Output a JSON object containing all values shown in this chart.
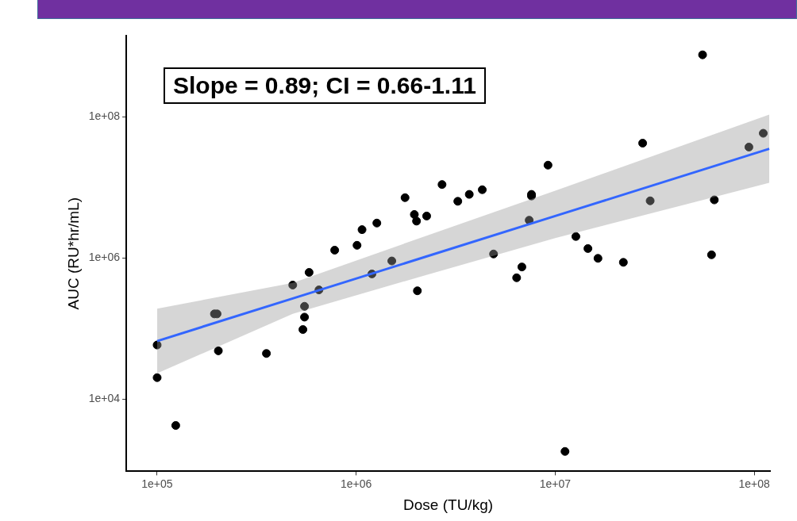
{
  "chart_data": {
    "type": "scatter",
    "xlabel": "Dose (TU/kg)",
    "ylabel": "AUC (RU*hr/mL)",
    "annotations": [
      "Slope = 0.89; CI = 0.66-1.11"
    ],
    "log": "xy",
    "grid": false,
    "legend": false,
    "xlim": [
      70000,
      120000000
    ],
    "ylim": [
      940,
      1400000000
    ],
    "xticks": [
      {
        "value": 100000,
        "label": "1e+05"
      },
      {
        "value": 1000000,
        "label": "1e+06"
      },
      {
        "value": 10000000,
        "label": "1e+07"
      },
      {
        "value": 100000000,
        "label": "1e+08"
      }
    ],
    "yticks": [
      {
        "value": 10000,
        "label": "1e+04"
      },
      {
        "value": 1000000,
        "label": "1e+06"
      },
      {
        "value": 100000000,
        "label": "1e+08"
      }
    ],
    "series": [
      {
        "marker": "circle",
        "color": "#000000",
        "x": [
          100000,
          100000,
          124000,
          194000,
          200000,
          203000,
          354000,
          480000,
          540000,
          550000,
          550000,
          580000,
          650000,
          780000,
          1010000,
          1200000,
          1070000,
          1270000,
          1510000,
          1760000,
          1960000,
          2010000,
          2030000,
          2260000,
          2700000,
          3240000,
          3700000,
          4300000,
          9200000,
          7600000,
          7600000,
          7400000,
          4900000,
          12700000,
          14600000,
          16400000,
          22000000,
          27500000,
          30000000,
          55000000,
          63000000,
          61000000,
          94000000,
          111000000,
          6400000,
          6800000,
          11200000
        ],
        "values": [
          58000,
          20000,
          4200,
          160000,
          160000,
          48000,
          44000,
          410000,
          96000,
          144000,
          205000,
          620000,
          350000,
          1280000,
          1500000,
          590000,
          2500000,
          3100000,
          900000,
          7100000,
          4100000,
          3300000,
          340000,
          3900000,
          10900000,
          6300000,
          7900000,
          9200000,
          20500000,
          7900000,
          7500000,
          3400000,
          1130000,
          2000000,
          1350000,
          980000,
          860000,
          42000000,
          6400000,
          750000000,
          6600000,
          1100000,
          37000000,
          58000000,
          520000,
          740000,
          1800
        ]
      },
      {
        "type": "line",
        "color": "#3366ff",
        "x": [
          100000,
          480000,
          2200000,
          10000000,
          119000000
        ],
        "values": [
          66000,
          265000,
          1020000,
          3900000,
          35000000
        ],
        "lower": [
          23000,
          160000,
          560000,
          1900000,
          11500000
        ],
        "upper": [
          190000,
          440000,
          2000000,
          8900000,
          107000000
        ]
      }
    ]
  }
}
